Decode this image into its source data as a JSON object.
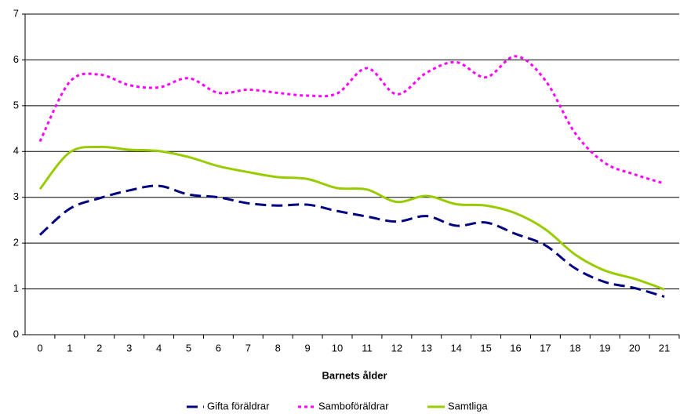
{
  "chart_data": {
    "type": "line",
    "x_label": "Barnets ålder",
    "categories": [
      "0",
      "1",
      "2",
      "3",
      "4",
      "5",
      "6",
      "7",
      "8",
      "9",
      "10",
      "11",
      "12",
      "13",
      "14",
      "15",
      "16",
      "17",
      "18",
      "19",
      "20",
      "21"
    ],
    "series": [
      {
        "name": "Gifta föräldrar",
        "color": "#000080",
        "dash": "dashed",
        "values": [
          2.18,
          2.75,
          2.98,
          3.15,
          3.25,
          3.06,
          3.0,
          2.87,
          2.82,
          2.84,
          2.7,
          2.58,
          2.47,
          2.59,
          2.38,
          2.45,
          2.2,
          1.95,
          1.45,
          1.15,
          1.02,
          0.83
        ]
      },
      {
        "name": "Samboföräldrar",
        "color": "#ff00ff",
        "dash": "dotted",
        "values": [
          4.22,
          5.52,
          5.68,
          5.45,
          5.4,
          5.6,
          5.28,
          5.35,
          5.28,
          5.22,
          5.27,
          5.82,
          5.25,
          5.72,
          5.95,
          5.62,
          6.08,
          5.55,
          4.4,
          3.75,
          3.5,
          3.3
        ]
      },
      {
        "name": "Samtliga",
        "color": "#99cc00",
        "dash": "solid",
        "values": [
          3.18,
          3.98,
          4.1,
          4.04,
          4.01,
          3.88,
          3.68,
          3.55,
          3.44,
          3.4,
          3.2,
          3.17,
          2.9,
          3.03,
          2.85,
          2.82,
          2.65,
          2.3,
          1.75,
          1.4,
          1.22,
          0.99
        ]
      }
    ],
    "ylim": [
      0,
      7
    ],
    "yticks": [
      0,
      1,
      2,
      3,
      4,
      5,
      6,
      7
    ],
    "grid": true,
    "legend": "bottom"
  }
}
